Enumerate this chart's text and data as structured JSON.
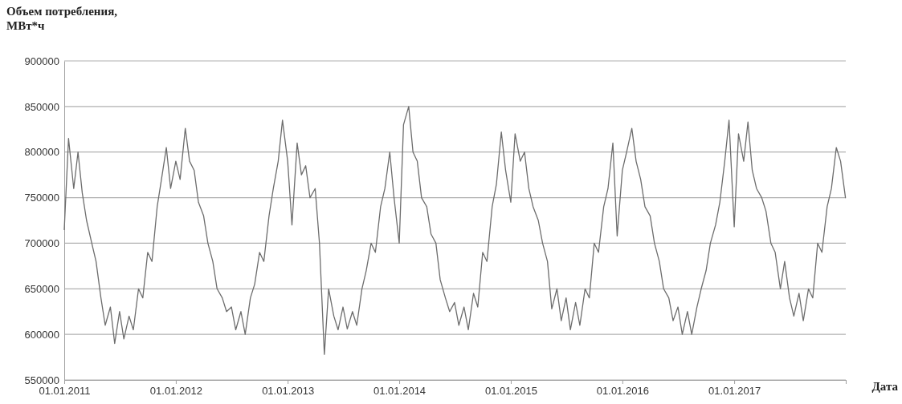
{
  "chart_data": {
    "type": "line",
    "ylabel": "Объем потребления, МВт*ч",
    "xlabel": "Дата",
    "xlim": [
      "2011-01-01",
      "2018-01-01"
    ],
    "xticks": [
      {
        "value": "2011-01-01",
        "label": "01.01.2011"
      },
      {
        "value": "2012-01-01",
        "label": "01.01.2012"
      },
      {
        "value": "2013-01-01",
        "label": "01.01.2013"
      },
      {
        "value": "2014-01-01",
        "label": "01.01.2014"
      },
      {
        "value": "2015-01-01",
        "label": "01.01.2015"
      },
      {
        "value": "2016-01-01",
        "label": "01.01.2016"
      },
      {
        "value": "2017-01-01",
        "label": "01.01.2017"
      },
      {
        "value": "2018-01-01",
        "label": null
      }
    ],
    "ylim": [
      550000,
      900000
    ],
    "yticks": [
      550000,
      600000,
      650000,
      700000,
      750000,
      800000,
      850000,
      900000
    ],
    "grid": "y",
    "marker": "none",
    "line_style": "solid",
    "series": [
      {
        "color": "#6d6d6d",
        "x": [
          "2011-01-01",
          "2011-01-15",
          "2011-02-01",
          "2011-02-15",
          "2011-03-01",
          "2011-03-15",
          "2011-04-01",
          "2011-04-15",
          "2011-05-01",
          "2011-05-15",
          "2011-06-01",
          "2011-06-15",
          "2011-07-01",
          "2011-07-15",
          "2011-08-01",
          "2011-08-15",
          "2011-09-01",
          "2011-09-15",
          "2011-10-01",
          "2011-10-15",
          "2011-11-01",
          "2011-11-15",
          "2011-12-01",
          "2011-12-15",
          "2012-01-01",
          "2012-01-15",
          "2012-02-01",
          "2012-02-15",
          "2012-03-01",
          "2012-03-15",
          "2012-04-01",
          "2012-04-15",
          "2012-05-01",
          "2012-05-15",
          "2012-06-01",
          "2012-06-15",
          "2012-07-01",
          "2012-07-15",
          "2012-08-01",
          "2012-08-15",
          "2012-09-01",
          "2012-09-15",
          "2012-10-01",
          "2012-10-15",
          "2012-11-01",
          "2012-11-15",
          "2012-12-01",
          "2012-12-15",
          "2013-01-01",
          "2013-01-15",
          "2013-02-01",
          "2013-02-15",
          "2013-03-01",
          "2013-03-15",
          "2013-04-01",
          "2013-04-15",
          "2013-05-01",
          "2013-05-15",
          "2013-06-01",
          "2013-06-15",
          "2013-07-01",
          "2013-07-15",
          "2013-08-01",
          "2013-08-15",
          "2013-09-01",
          "2013-09-15",
          "2013-10-01",
          "2013-10-15",
          "2013-11-01",
          "2013-11-15",
          "2013-12-01",
          "2013-12-15",
          "2014-01-01",
          "2014-01-15",
          "2014-02-01",
          "2014-02-15",
          "2014-03-01",
          "2014-03-15",
          "2014-04-01",
          "2014-04-15",
          "2014-05-01",
          "2014-05-15",
          "2014-06-01",
          "2014-06-15",
          "2014-07-01",
          "2014-07-15",
          "2014-08-01",
          "2014-08-15",
          "2014-09-01",
          "2014-09-15",
          "2014-10-01",
          "2014-10-15",
          "2014-11-01",
          "2014-11-15",
          "2014-12-01",
          "2014-12-15",
          "2015-01-01",
          "2015-01-15",
          "2015-02-01",
          "2015-02-15",
          "2015-03-01",
          "2015-03-15",
          "2015-04-01",
          "2015-04-15",
          "2015-05-01",
          "2015-05-15",
          "2015-06-01",
          "2015-06-15",
          "2015-07-01",
          "2015-07-15",
          "2015-08-01",
          "2015-08-15",
          "2015-09-01",
          "2015-09-15",
          "2015-10-01",
          "2015-10-15",
          "2015-11-01",
          "2015-11-15",
          "2015-12-01",
          "2015-12-15",
          "2016-01-01",
          "2016-01-15",
          "2016-02-01",
          "2016-02-15",
          "2016-03-01",
          "2016-03-15",
          "2016-04-01",
          "2016-04-15",
          "2016-05-01",
          "2016-05-15",
          "2016-06-01",
          "2016-06-15",
          "2016-07-01",
          "2016-07-15",
          "2016-08-01",
          "2016-08-15",
          "2016-09-01",
          "2016-09-15",
          "2016-10-01",
          "2016-10-15",
          "2016-11-01",
          "2016-11-15",
          "2016-12-01",
          "2016-12-15",
          "2017-01-01",
          "2017-01-15",
          "2017-02-01",
          "2017-02-15",
          "2017-03-01",
          "2017-03-15",
          "2017-04-01",
          "2017-04-15",
          "2017-05-01",
          "2017-05-15",
          "2017-06-01",
          "2017-06-15",
          "2017-07-01",
          "2017-07-15",
          "2017-08-01",
          "2017-08-15",
          "2017-09-01",
          "2017-09-15",
          "2017-10-01",
          "2017-10-15",
          "2017-11-01",
          "2017-11-15",
          "2017-12-01",
          "2017-12-15",
          "2017-12-31"
        ],
        "values": [
          715000,
          815000,
          760000,
          800000,
          755000,
          725000,
          700000,
          680000,
          640000,
          610000,
          630000,
          590000,
          625000,
          595000,
          620000,
          605000,
          650000,
          640000,
          690000,
          680000,
          740000,
          770000,
          805000,
          760000,
          790000,
          770000,
          826000,
          790000,
          780000,
          745000,
          730000,
          700000,
          680000,
          650000,
          640000,
          625000,
          630000,
          605000,
          625000,
          600000,
          640000,
          655000,
          690000,
          680000,
          730000,
          760000,
          790000,
          835000,
          790000,
          720000,
          810000,
          775000,
          785000,
          750000,
          760000,
          700000,
          578000,
          650000,
          620000,
          605000,
          630000,
          606000,
          625000,
          610000,
          650000,
          670000,
          700000,
          690000,
          740000,
          760000,
          800000,
          750000,
          700000,
          830000,
          850000,
          800000,
          790000,
          750000,
          740000,
          710000,
          700000,
          660000,
          640000,
          625000,
          635000,
          610000,
          630000,
          605000,
          645000,
          630000,
          690000,
          680000,
          740000,
          765000,
          822000,
          780000,
          745000,
          820000,
          790000,
          800000,
          760000,
          740000,
          725000,
          700000,
          680000,
          628000,
          650000,
          615000,
          640000,
          605000,
          635000,
          610000,
          650000,
          640000,
          700000,
          690000,
          740000,
          760000,
          810000,
          708000,
          780000,
          800000,
          826000,
          790000,
          770000,
          740000,
          730000,
          700000,
          680000,
          650000,
          640000,
          615000,
          630000,
          600000,
          625000,
          600000,
          630000,
          650000,
          670000,
          700000,
          720000,
          745000,
          790000,
          835000,
          718000,
          820000,
          790000,
          833000,
          780000,
          760000,
          750000,
          735000,
          700000,
          690000,
          650000,
          680000,
          640000,
          620000,
          645000,
          615000,
          650000,
          640000,
          700000,
          690000,
          740000,
          760000,
          805000,
          790000,
          750000
        ]
      }
    ]
  }
}
